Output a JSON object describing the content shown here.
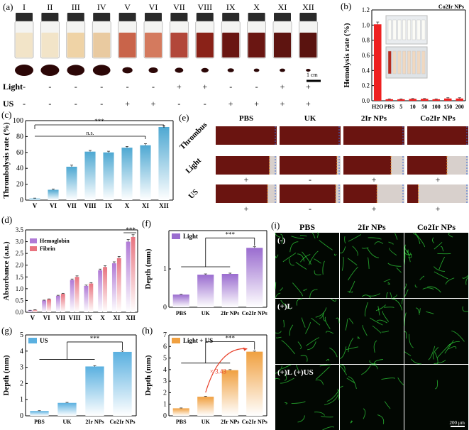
{
  "panel_letters": {
    "a": "(a)",
    "b": "(b)",
    "c": "(c)",
    "d": "(d)",
    "e": "(e)",
    "f": "(f)",
    "g": "(g)",
    "h": "(h)",
    "i": "(i)"
  },
  "panel_a": {
    "groups": [
      "I",
      "II",
      "III",
      "IV",
      "V",
      "VI",
      "VII",
      "VIII",
      "IX",
      "X",
      "XI",
      "XII"
    ],
    "light_label": "Light",
    "us_label": "US",
    "light": [
      "-",
      "-",
      "-",
      "-",
      "-",
      "-",
      "+",
      "+",
      "-",
      "-",
      "+",
      "+"
    ],
    "us": [
      "-",
      "-",
      "-",
      "-",
      "+",
      "+",
      "-",
      "-",
      "+",
      "+",
      "+",
      "+"
    ],
    "scale_text": "1 cm",
    "vial_liquid_colors": [
      "#f2e4c8",
      "#f2e4c8",
      "#efd3a6",
      "#e9caa0",
      "#c9644a",
      "#d47a5e",
      "#b2473a",
      "#8a2218",
      "#6a1612",
      "#6a1612",
      "#5e1410",
      "#5a130f"
    ],
    "clot_sizes_relative": [
      1.0,
      1.0,
      0.95,
      0.95,
      0.55,
      0.5,
      0.45,
      0.4,
      0.35,
      0.3,
      0.3,
      0.25
    ]
  },
  "panel_e": {
    "columns": [
      "PBS",
      "UK",
      "2Ir NPs",
      "Co2Ir NPs"
    ],
    "rows": [
      "Thrombus",
      "Light",
      "US"
    ],
    "light_marks": [
      "+",
      "-",
      "+",
      "+"
    ],
    "us_marks": [
      "+",
      "-",
      "+",
      "+"
    ]
  },
  "panel_i": {
    "columns": [
      "PBS",
      "2Ir  NPs",
      "Co2Ir  NPs"
    ],
    "rows": [
      "(-)",
      "(+)L",
      "(+)L (+)US"
    ],
    "scale_text": "200 μm",
    "network_color": "#2fd23a"
  },
  "chart_data": [
    {
      "id": "b",
      "type": "bar",
      "title": "Co2Ir NPs",
      "ylabel": "Hemolysis rate (%)",
      "categories": [
        "H2O",
        "PBS",
        "5",
        "10",
        "50",
        "100",
        "150",
        "200"
      ],
      "values": [
        1.01,
        0.02,
        0.02,
        0.025,
        0.025,
        0.02,
        0.03,
        0.03
      ],
      "errors": [
        0.03,
        0.005,
        0.005,
        0.005,
        0.005,
        0.005,
        0.01,
        0.01
      ],
      "ylim": [
        0,
        1.2
      ],
      "yticks": [
        "0.0",
        "0.2",
        "0.4",
        "0.6",
        "0.8",
        "1.0",
        "1.2"
      ],
      "bar_color": "#ee2020"
    },
    {
      "id": "c",
      "type": "bar",
      "ylabel": "Thrombolysis rate (%)",
      "categories": [
        "V",
        "VI",
        "VII",
        "VIII",
        "IX",
        "X",
        "XI",
        "XII"
      ],
      "values": [
        2,
        13,
        42,
        61,
        60,
        66,
        69,
        92
      ],
      "errors": [
        0.5,
        1,
        2,
        1.5,
        1.5,
        1.5,
        2,
        1.5
      ],
      "ylim": [
        0,
        100
      ],
      "yticks": [
        "0",
        "20",
        "40",
        "60",
        "80",
        "100"
      ],
      "annotations": [
        "***",
        "n.s."
      ],
      "bar_color": "#4ea8d2"
    },
    {
      "id": "d",
      "type": "bar",
      "ylabel": "Absorbance (a.u.)",
      "categories": [
        "V",
        "VI",
        "VII",
        "VIII",
        "IX",
        "X",
        "XI",
        "XII"
      ],
      "series": [
        {
          "name": "Hemoglobin",
          "values": [
            0.08,
            0.5,
            0.7,
            1.37,
            1.12,
            1.78,
            2.08,
            3.0
          ],
          "color": "#b07ad6"
        },
        {
          "name": "Fibrin",
          "values": [
            0.1,
            0.55,
            0.78,
            1.5,
            1.22,
            1.92,
            2.3,
            3.2
          ],
          "color": "#e8737f"
        }
      ],
      "ylim": [
        0,
        3.5
      ],
      "yticks": [
        "0.0",
        "0.5",
        "1.0",
        "1.5",
        "2.0",
        "2.5",
        "3.0",
        "3.5"
      ],
      "annotations": [
        "***"
      ],
      "legend": "top-left"
    },
    {
      "id": "f",
      "type": "bar",
      "ylabel": "Depth (mm)",
      "legend_entry": "Light",
      "categories": [
        "PBS",
        "UK",
        "2Ir NPs",
        "Co2Ir NPs"
      ],
      "values": [
        0.33,
        0.85,
        0.87,
        1.55
      ],
      "errors": [
        0.01,
        0.02,
        0.02,
        0.03
      ],
      "ylim": [
        0,
        2
      ],
      "yticks": [
        "0",
        "1"
      ],
      "annotations": [
        "***"
      ],
      "bar_color": "#9a6ccf"
    },
    {
      "id": "g",
      "type": "bar",
      "ylabel": "Depth (mm)",
      "legend_entry": "US",
      "categories": [
        "PBS",
        "UK",
        "2Ir NPs",
        "Co2Ir NPs"
      ],
      "values": [
        0.3,
        0.8,
        3.05,
        3.95
      ],
      "errors": [
        0.02,
        0.03,
        0.05,
        0.05
      ],
      "ylim": [
        0,
        5
      ],
      "yticks": [
        "0",
        "1",
        "2",
        "3",
        "4",
        "5"
      ],
      "annotations": [
        "***"
      ],
      "bar_color": "#5ab0e0"
    },
    {
      "id": "h",
      "type": "bar",
      "ylabel": "Depth (mm)",
      "legend_entry": "Light + US",
      "categories": [
        "PBS",
        "UK",
        "2Ir NPs",
        "Co2Ir NPs"
      ],
      "values": [
        0.65,
        1.65,
        3.95,
        5.55
      ],
      "errors": [
        0.03,
        0.04,
        0.05,
        0.05
      ],
      "ylim": [
        0,
        7
      ],
      "yticks": [
        "0",
        "1",
        "2",
        "3",
        "4",
        "5",
        "6",
        "7"
      ],
      "annotations": [
        "***",
        "× 3.43"
      ],
      "bar_color": "#f0a040"
    }
  ]
}
